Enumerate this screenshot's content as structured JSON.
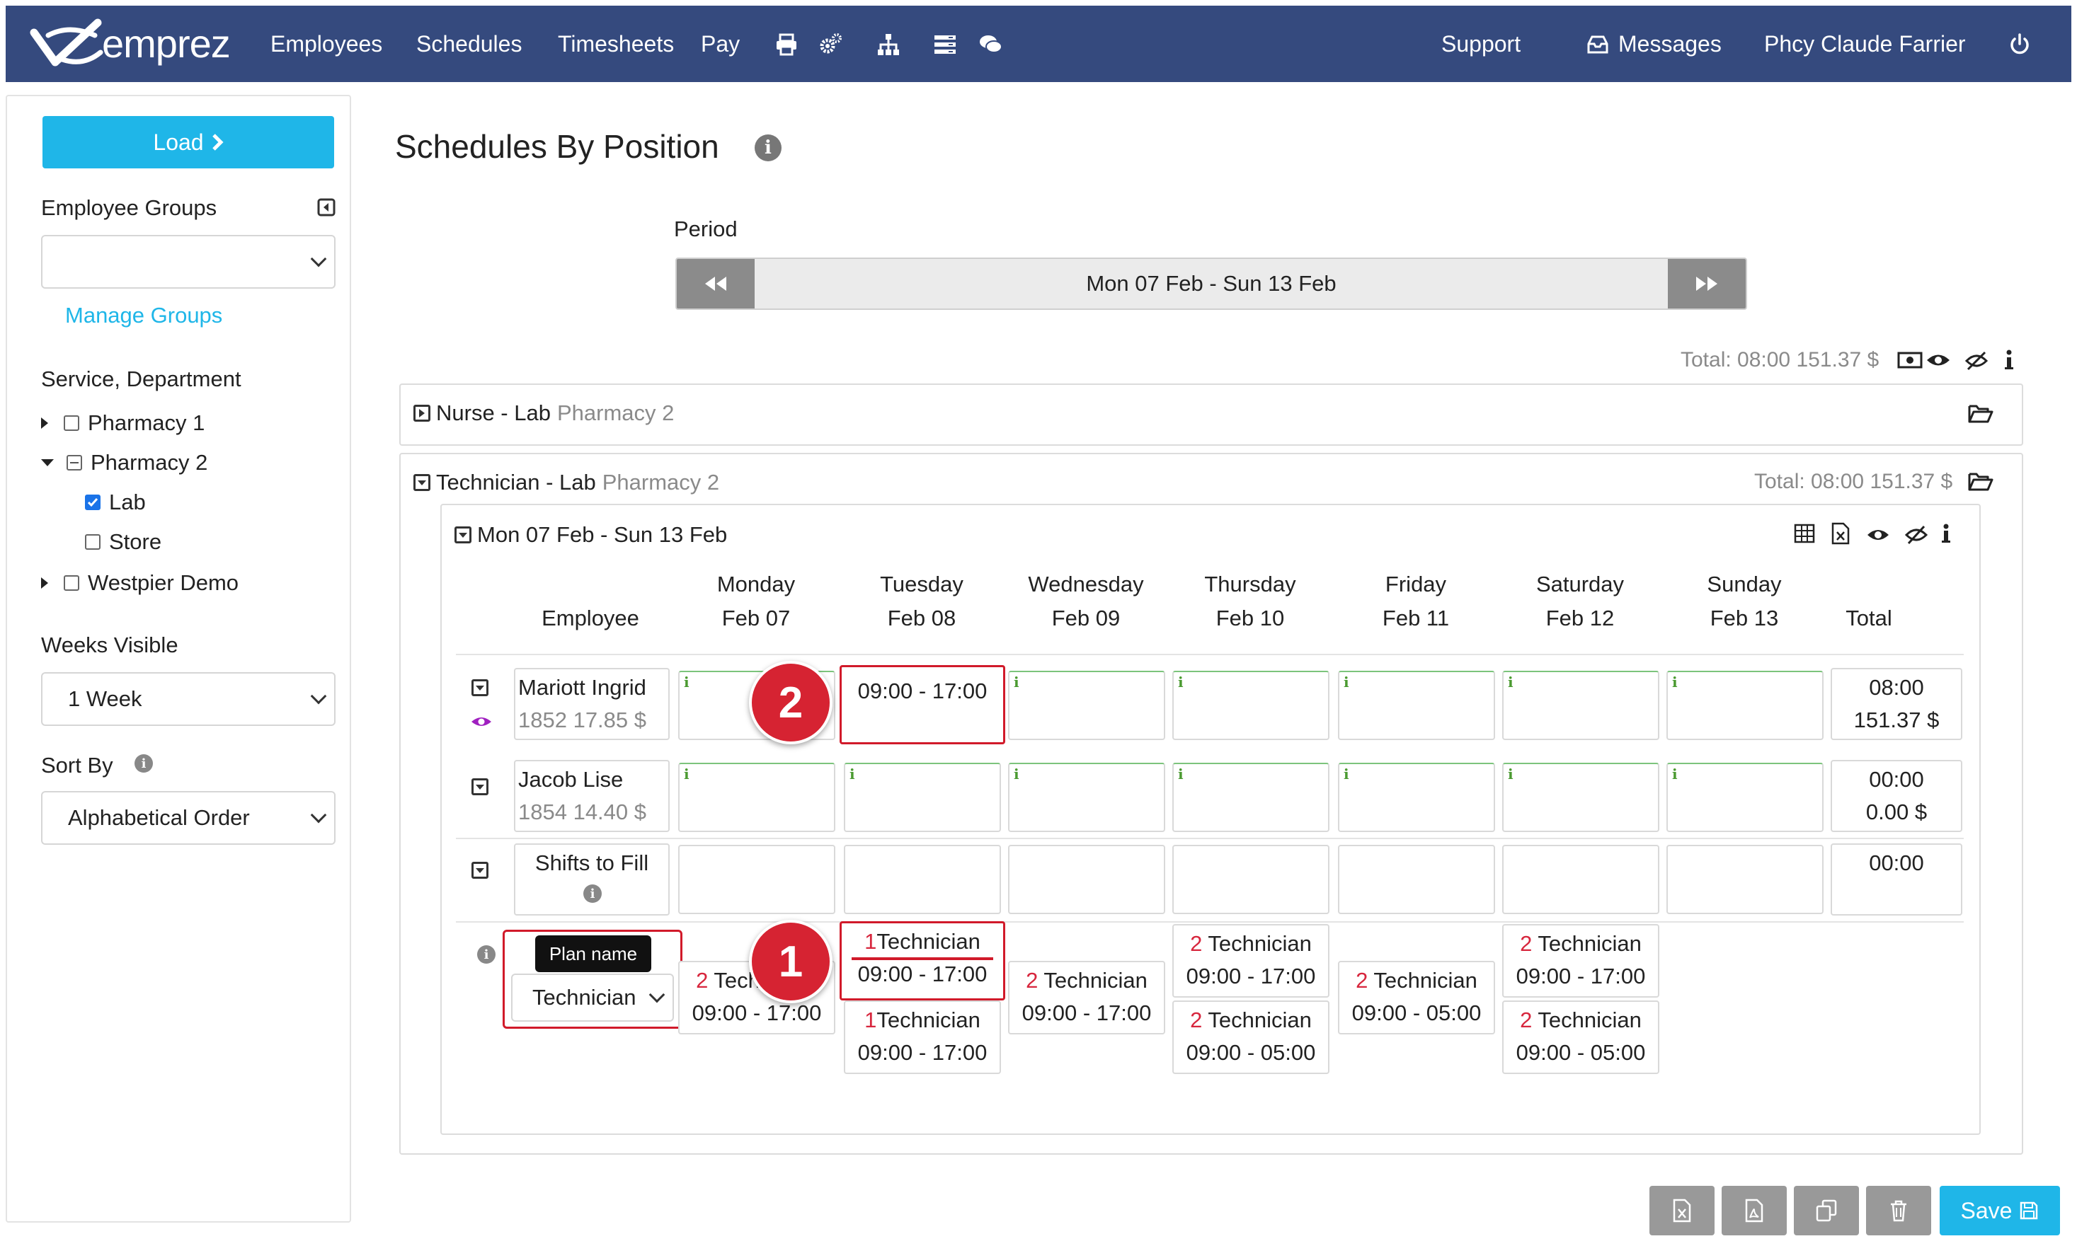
{
  "topbar": {
    "logo_text": "emprez",
    "nav": [
      "Employees",
      "Schedules",
      "Timesheets",
      "Pay"
    ],
    "icons": [
      "printer-icon",
      "gears-icon",
      "org-chart-icon",
      "list-icon",
      "chat-icon"
    ],
    "support": "Support",
    "messages": "Messages",
    "user": "Phcy Claude Farrier",
    "bg_color": "#354a7e"
  },
  "sidebar": {
    "load_label": "Load",
    "employee_groups_label": "Employee Groups",
    "employee_groups_value": "",
    "manage_groups": "Manage Groups",
    "service_label": "Service, Department",
    "tree": [
      {
        "label": "Pharmacy 1",
        "expanded": false,
        "checked": false
      },
      {
        "label": "Pharmacy 2",
        "expanded": true,
        "checked": "partial"
      },
      {
        "label": "Lab",
        "checked": true
      },
      {
        "label": "Store",
        "checked": false
      },
      {
        "label": "Westpier Demo",
        "expanded": false,
        "checked": false
      }
    ],
    "weeks_label": "Weeks Visible",
    "weeks_value": "1 Week",
    "sort_label": "Sort By",
    "sort_value": "Alphabetical Order"
  },
  "main": {
    "title": "Schedules By Position",
    "period_label": "Period",
    "period_value": "Mon 07 Feb - Sun 13 Feb",
    "grand_total": "Total: 08:00 151.37 $",
    "nurse_panel": {
      "position": "Nurse - Lab",
      "location": "Pharmacy 2"
    },
    "tech_panel": {
      "position": "Technician - Lab",
      "location": "Pharmacy 2",
      "total": "Total: 08:00 151.37 $"
    },
    "week_label": "Mon 07 Feb - Sun 13 Feb",
    "columns": {
      "employee": "Employee",
      "total": "Total",
      "days": [
        {
          "day": "Monday",
          "date": "Feb 07"
        },
        {
          "day": "Tuesday",
          "date": "Feb 08"
        },
        {
          "day": "Wednesday",
          "date": "Feb 09"
        },
        {
          "day": "Thursday",
          "date": "Feb 10"
        },
        {
          "day": "Friday",
          "date": "Feb 11"
        },
        {
          "day": "Saturday",
          "date": "Feb 12"
        },
        {
          "day": "Sunday",
          "date": "Feb 13"
        }
      ]
    },
    "rows": [
      {
        "name": "Mariott Ingrid",
        "sub": "1852 17.85 $",
        "tuesday_shift": "09:00 - 17:00",
        "total_time": "08:00",
        "total_pay": "151.37 $"
      },
      {
        "name": "Jacob Lise",
        "sub": "1854 14.40 $",
        "total_time": "00:00",
        "total_pay": "0.00 $"
      }
    ],
    "shifts_to_fill": {
      "label": "Shifts to Fill",
      "total": "00:00"
    },
    "plan": {
      "tooltip": "Plan name",
      "select_value": "Technician",
      "monday": [
        {
          "count": "2",
          "role": "Technician",
          "time": "09:00 - 17:00"
        }
      ],
      "tuesday": [
        {
          "count": "1",
          "role": "Technician",
          "time": "09:00 - 17:00"
        },
        {
          "count": "1",
          "role": "Technician",
          "time": "09:00 - 17:00"
        }
      ],
      "wednesday": [
        {
          "count": "2",
          "role": "Technician",
          "time": "09:00 - 17:00"
        }
      ],
      "thursday": [
        {
          "count": "2",
          "role": "Technician",
          "time": "09:00 - 17:00"
        },
        {
          "count": "2",
          "role": "Technician",
          "time": "09:00 - 05:00"
        }
      ],
      "friday": [
        {
          "count": "2",
          "role": "Technician",
          "time": "09:00 - 05:00"
        }
      ],
      "saturday": [
        {
          "count": "2",
          "role": "Technician",
          "time": "09:00 - 17:00"
        },
        {
          "count": "2",
          "role": "Technician",
          "time": "09:00 - 05:00"
        }
      ]
    },
    "callouts": [
      "1",
      "2"
    ]
  },
  "footer": {
    "buttons": [
      "excel-export-icon",
      "pdf-export-icon",
      "copy-icon",
      "trash-icon"
    ],
    "save_label": "Save"
  },
  "colors": {
    "accent": "#1fb6e8",
    "highlight": "#d11a2a",
    "badge": "#d62332"
  }
}
